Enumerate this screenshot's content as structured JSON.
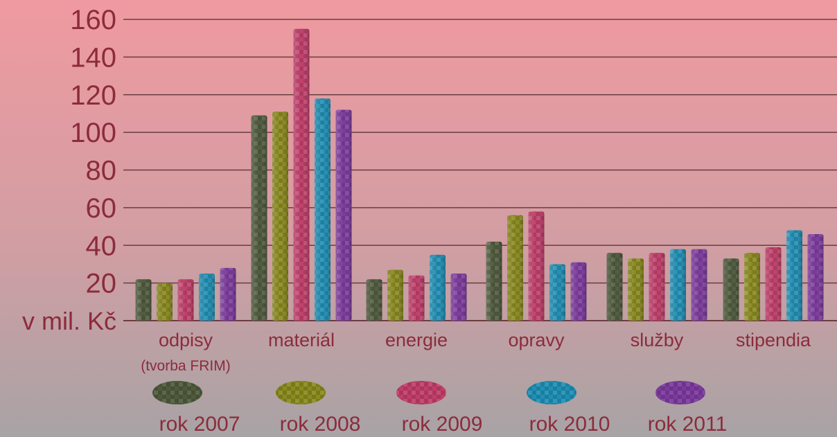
{
  "chart_data": {
    "type": "bar",
    "title": "",
    "unit_label": "v mil. Kč",
    "categories": [
      "odpisy",
      "materiál",
      "energie",
      "opravy",
      "služby",
      "stipendia"
    ],
    "category_notes": [
      "(tvorba FRIM)",
      "",
      "",
      "",
      "",
      ""
    ],
    "y_ticks": [
      "20",
      "40",
      "60",
      "80",
      "100",
      "120",
      "140",
      "160"
    ],
    "ylim": [
      0,
      160
    ],
    "grid": true,
    "legend_position": "bottom",
    "series": [
      {
        "name": "rok 2007",
        "color": "#4f5a3c",
        "values": [
          22,
          109,
          22,
          42,
          36,
          33
        ]
      },
      {
        "name": "rok 2008",
        "color": "#8a8a1e",
        "values": [
          20,
          111,
          27,
          56,
          33,
          36
        ]
      },
      {
        "name": "rok 2009",
        "color": "#c23d6a",
        "values": [
          22,
          155,
          24,
          58,
          36,
          39
        ]
      },
      {
        "name": "rok 2010",
        "color": "#1f8fb5",
        "values": [
          25,
          118,
          35,
          30,
          38,
          48
        ]
      },
      {
        "name": "rok 2011",
        "color": "#7d3a9e",
        "values": [
          28,
          112,
          25,
          31,
          38,
          46
        ]
      }
    ]
  }
}
